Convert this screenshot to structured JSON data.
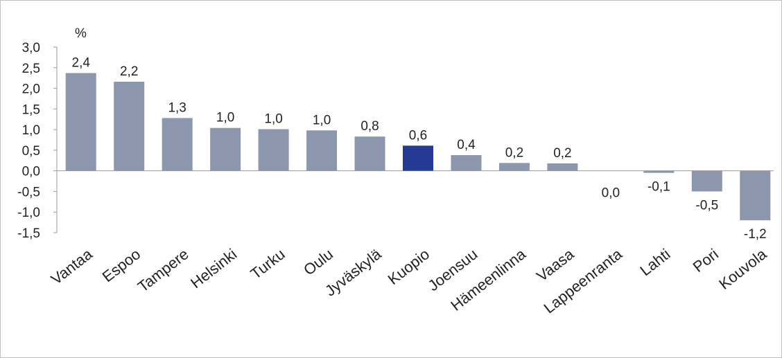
{
  "chart_data": {
    "type": "bar",
    "unit_label": "%",
    "categories": [
      "Vantaa",
      "Espoo",
      "Tampere",
      "Helsinki",
      "Turku",
      "Oulu",
      "Jyväskylä",
      "Kuopio",
      "Joensuu",
      "Hämeenlinna",
      "Vaasa",
      "Lappeenranta",
      "Lahti",
      "Pori",
      "Kouvola"
    ],
    "values": [
      2.37,
      2.16,
      1.28,
      1.04,
      1.01,
      0.98,
      0.83,
      0.61,
      0.38,
      0.19,
      0.18,
      0.0,
      -0.05,
      -0.5,
      -1.2
    ],
    "data_labels": [
      "2,4",
      "2,2",
      "1,3",
      "1,0",
      "1,0",
      "1,0",
      "0,8",
      "0,6",
      "0,4",
      "0,2",
      "0,2",
      "0,0",
      "-0,1",
      "-0,5",
      "-1,2"
    ],
    "highlight_index": 7,
    "ylim": [
      -1.5,
      3.0
    ],
    "yticks": [
      3.0,
      2.5,
      2.0,
      1.5,
      1.0,
      0.5,
      0.0,
      -0.5,
      -1.0,
      -1.5
    ],
    "ytick_labels": [
      "3,0",
      "2,5",
      "2,0",
      "1,5",
      "1,0",
      "0,5",
      "0,0",
      "-0,5",
      "-1,0",
      "-1,5"
    ],
    "colors": {
      "bar": "#8c96ad",
      "highlight": "#253a93",
      "axis": "#9a9a9a"
    },
    "grid": false,
    "legend": "none"
  }
}
